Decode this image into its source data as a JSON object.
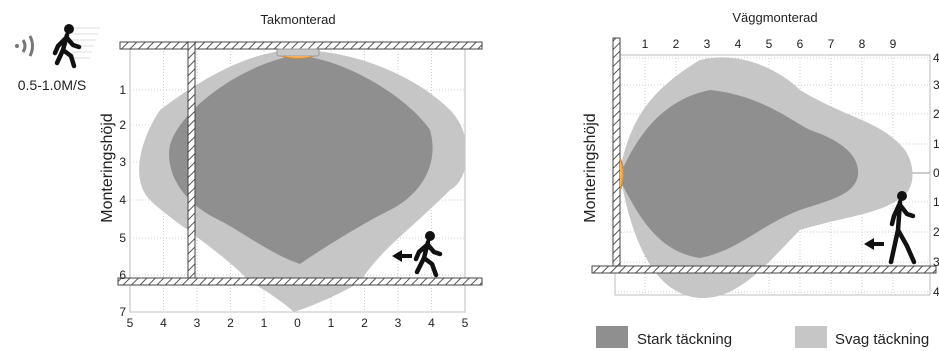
{
  "speed_label": "0.5-1.0M/S",
  "colors": {
    "strong": "#8f8f8f",
    "weak": "#c6c6c6",
    "grid": "#c9c9c9",
    "lens": "#e0a24a"
  },
  "icons": [
    "motion-wave-icon",
    "walking-person-icon",
    "left-arrow-icon"
  ],
  "ceiling": {
    "title": "Takmonterad",
    "axis_label": "Monteringshöjd",
    "x_ticks": [
      "5",
      "4",
      "3",
      "2",
      "1",
      "0",
      "1",
      "2",
      "3",
      "4",
      "5"
    ],
    "y_ticks": [
      "1",
      "2",
      "3",
      "4",
      "5",
      "6",
      "7"
    ]
  },
  "wall": {
    "title": "Väggmonterad",
    "axis_label": "Monteringshöjd",
    "x_ticks": [
      "1",
      "2",
      "3",
      "4",
      "5",
      "6",
      "7",
      "8",
      "9"
    ],
    "y_ticks": [
      "4",
      "3",
      "2",
      "1",
      "0",
      "1",
      "2",
      "3",
      "4"
    ]
  },
  "legend": {
    "strong": "Stark täckning",
    "weak": "Svag täckning"
  }
}
